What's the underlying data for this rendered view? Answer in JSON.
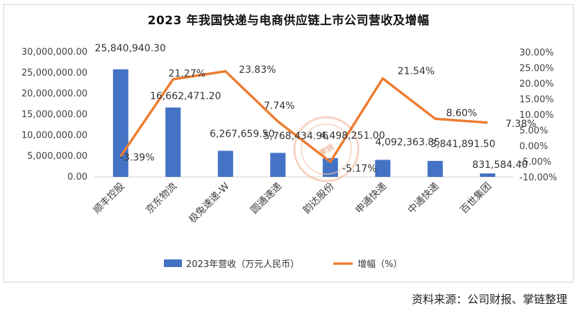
{
  "chart_data": {
    "type": "bar+line",
    "title": "2023 年我国快递与电商供应链上市公司营收及增幅",
    "categories": [
      "顺丰控股",
      "京东物流",
      "极兔速递-W",
      "圆通速递",
      "韵达股份",
      "申通快递",
      "中通快递",
      "百世集团"
    ],
    "series": [
      {
        "name": "2023年营收（万元人民币）",
        "type": "bar",
        "axis": "left",
        "values": [
          25840940.3,
          16662471.2,
          6267659.5,
          5768434.96,
          4498251.0,
          4092363.85,
          3841891.5,
          831584.4
        ],
        "labels": [
          "25,840,940.30",
          "16,662,471.20",
          "6,267,659.50",
          "5,768,434.96",
          "4,498,251.00",
          "4,092,363.85",
          "3,841,891.50",
          "831,584.40"
        ]
      },
      {
        "name": "增幅（%）",
        "type": "line",
        "axis": "right",
        "values": [
          -3.39,
          21.27,
          23.83,
          7.74,
          -5.17,
          21.54,
          8.6,
          7.38
        ],
        "labels": [
          "-3.39%",
          "21.27%",
          "23.83%",
          "7.74%",
          "-5.17%",
          "21.54%",
          "8.60%",
          "7.38%"
        ]
      }
    ],
    "y_left": {
      "range": [
        0,
        30000000
      ],
      "ticks": [
        0,
        5000000,
        10000000,
        15000000,
        20000000,
        25000000,
        30000000
      ],
      "tick_labels": [
        "0.00",
        "5,000,000.00",
        "10,000,000.00",
        "15,000,000.00",
        "20,000,000.00",
        "25,000,000.00",
        "30,000,000.00"
      ]
    },
    "y_right": {
      "range": [
        -10,
        30
      ],
      "ticks": [
        -10,
        -5,
        0,
        5,
        10,
        15,
        20,
        25,
        30
      ],
      "tick_labels": [
        "-10.00%",
        "-5.00%",
        "0.00%",
        "5.00%",
        "10.00%",
        "15.00%",
        "20.00%",
        "25.00%",
        "30.00%"
      ]
    },
    "grid": false,
    "legend": "bottom",
    "colors": {
      "bar": "#4472c4",
      "line": "#ed7d31"
    }
  },
  "watermark": {
    "text": "掌链"
  },
  "source_note": "资料来源：公司财报、掌链整理"
}
